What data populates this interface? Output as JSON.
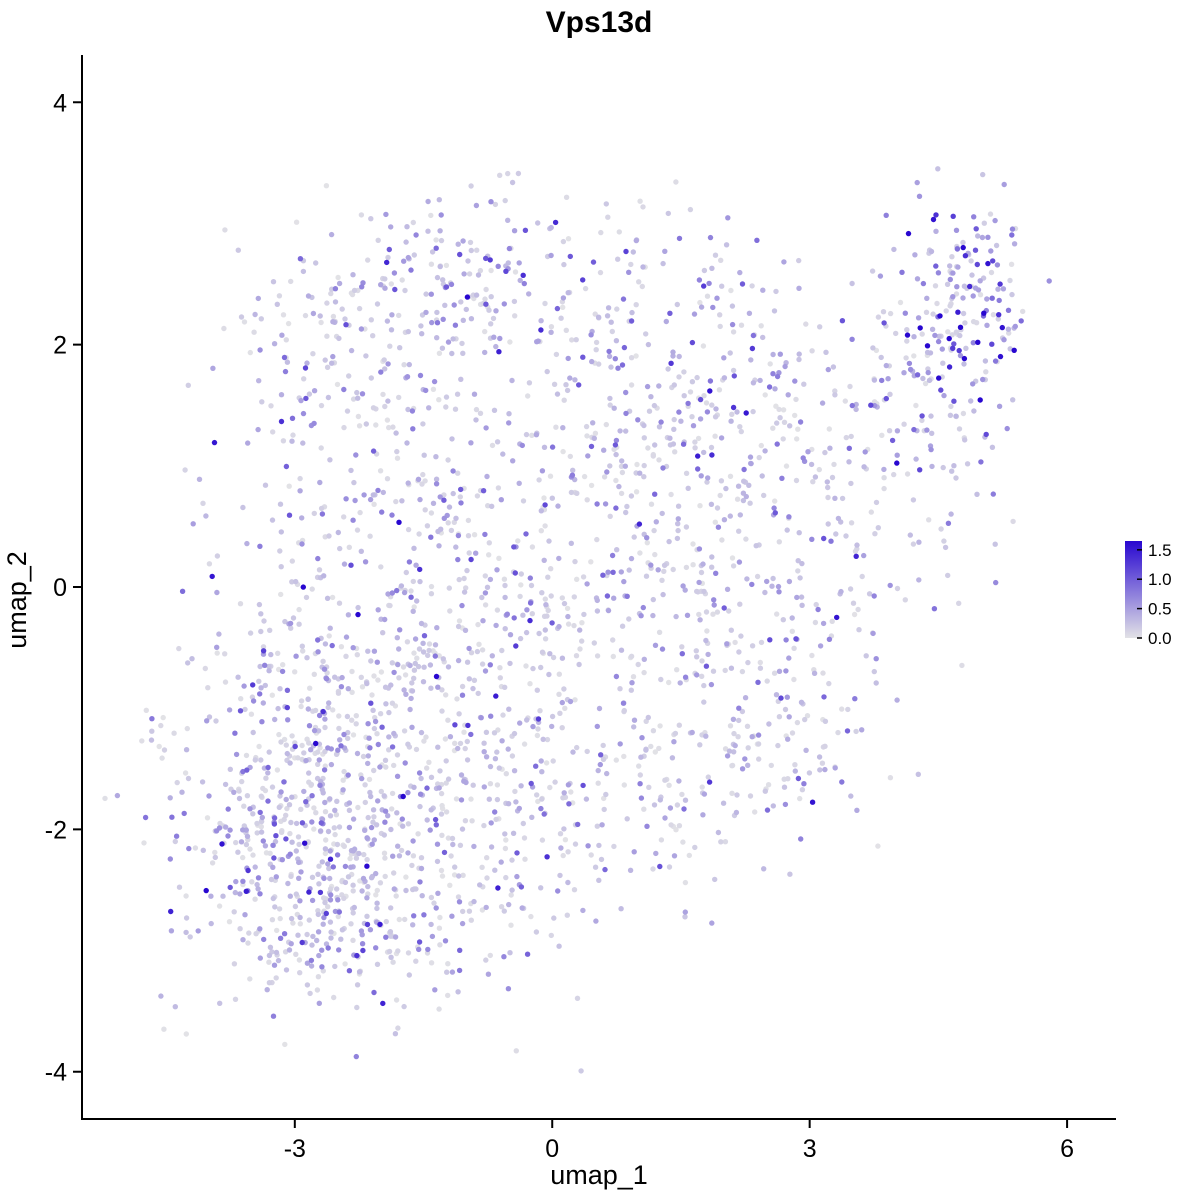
{
  "title": "Vps13d",
  "chart_data": {
    "type": "scatter",
    "title": "Vps13d",
    "xlabel": "umap_1",
    "ylabel": "umap_2",
    "x_ticks": [
      -3,
      0,
      3,
      6
    ],
    "y_ticks": [
      -4,
      -2,
      0,
      2,
      4
    ],
    "xlim": [
      -5.48,
      6.57
    ],
    "ylim": [
      -4.39,
      4.39
    ],
    "grid": false,
    "point_radius": 2.7,
    "seed": 42,
    "legend": {
      "position": "right",
      "ticks": [
        1.5,
        1.0,
        0.5,
        0.0
      ],
      "vmin": 0.0,
      "vmax": 1.65,
      "low_color": "#E2E2E6",
      "high_color": "#2807D0"
    },
    "clusters": [
      {
        "cx": -3.0,
        "cy": -2.2,
        "sx": 0.75,
        "sy": 0.6,
        "n": 380,
        "expr_mean": 0.3
      },
      {
        "cx": -2.2,
        "cy": -2.9,
        "sx": 0.6,
        "sy": 0.35,
        "n": 120,
        "expr_mean": 0.3
      },
      {
        "cx": -3.1,
        "cy": -0.9,
        "sx": 0.55,
        "sy": 0.8,
        "n": 170,
        "expr_mean": 0.3
      },
      {
        "cx": -1.9,
        "cy": -1.4,
        "sx": 0.8,
        "sy": 0.8,
        "n": 230,
        "expr_mean": 0.3
      },
      {
        "cx": -0.6,
        "cy": -2.0,
        "sx": 0.9,
        "sy": 0.7,
        "n": 190,
        "expr_mean": 0.28
      },
      {
        "cx": -1.6,
        "cy": 0.2,
        "sx": 0.9,
        "sy": 0.9,
        "n": 240,
        "expr_mean": 0.33
      },
      {
        "cx": -0.1,
        "cy": -0.4,
        "sx": 0.9,
        "sy": 0.8,
        "n": 190,
        "expr_mean": 0.3
      },
      {
        "cx": -0.9,
        "cy": 2.45,
        "sx": 1.1,
        "sy": 0.4,
        "n": 220,
        "expr_mean": 0.38
      },
      {
        "cx": -2.5,
        "cy": 1.6,
        "sx": 0.6,
        "sy": 0.6,
        "n": 110,
        "expr_mean": 0.33
      },
      {
        "cx": 0.6,
        "cy": 1.6,
        "sx": 0.9,
        "sy": 0.7,
        "n": 160,
        "expr_mean": 0.3
      },
      {
        "cx": 1.0,
        "cy": 0.3,
        "sx": 0.8,
        "sy": 0.8,
        "n": 120,
        "expr_mean": 0.28
      },
      {
        "cx": 2.2,
        "cy": 1.5,
        "sx": 0.8,
        "sy": 0.7,
        "n": 150,
        "expr_mean": 0.3
      },
      {
        "cx": 2.4,
        "cy": -0.5,
        "sx": 0.7,
        "sy": 0.8,
        "n": 120,
        "expr_mean": 0.3
      },
      {
        "cx": 3.5,
        "cy": 0.6,
        "sx": 0.7,
        "sy": 0.8,
        "n": 120,
        "expr_mean": 0.3
      },
      {
        "cx": 4.2,
        "cy": 1.7,
        "sx": 0.6,
        "sy": 0.6,
        "n": 130,
        "expr_mean": 0.4
      },
      {
        "cx": 4.85,
        "cy": 2.45,
        "sx": 0.38,
        "sy": 0.42,
        "n": 130,
        "expr_mean": 0.75
      },
      {
        "cx": -4.65,
        "cy": -1.2,
        "sx": 0.1,
        "sy": 0.13,
        "n": 9,
        "expr_mean": 0.3
      },
      {
        "cx": 1.4,
        "cy": -1.6,
        "sx": 0.6,
        "sy": 0.5,
        "n": 80,
        "expr_mean": 0.28
      },
      {
        "cx": 2.8,
        "cy": -1.2,
        "sx": 0.45,
        "sy": 0.5,
        "n": 60,
        "expr_mean": 0.35
      }
    ]
  }
}
